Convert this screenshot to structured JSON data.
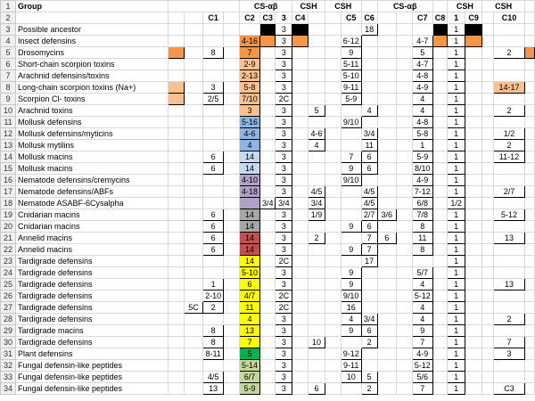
{
  "colors": {
    "orange": "#f79646",
    "lightorange": "#fac090",
    "blue": "#8db4e2",
    "lightblue": "#c5d9f1",
    "purple": "#b1a0c7",
    "gray": "#a6a6a6",
    "red": "#c0504d",
    "yellow": "#ffff00",
    "green": "#00b050",
    "olive": "#c4d79b",
    "black": "#000000"
  },
  "header1": {
    "cs_ab_1": "CS-αβ",
    "csh_1": "CSH",
    "csh_2": "CSH",
    "cs_ab_2": "CS-αβ",
    "csh_3": "CSH",
    "csh_4": "CSH"
  },
  "header2": {
    "c1": "C1",
    "c2": "C2",
    "c3": "C3",
    "n3": "3",
    "c4": "C4",
    "c5": "C5",
    "c6": "C6",
    "c7": "C7",
    "c8": "C8",
    "n1": "1",
    "c9": "C9",
    "c10": "C10"
  },
  "group_label": "Group",
  "rows": [
    {
      "n": "3",
      "group": "Possible ancestor"
    },
    {
      "n": "4",
      "group": "Insect defensins"
    },
    {
      "n": "5",
      "group": "Drosomycins"
    },
    {
      "n": "6",
      "group": "Short-chain scorpion toxins"
    },
    {
      "n": "7",
      "group": "Arachnid defensins/toxins"
    },
    {
      "n": "8",
      "group": "Long-chain scorpion toxins (Na+)"
    },
    {
      "n": "9",
      "group": "Scorpion Cl- toxins"
    },
    {
      "n": "10",
      "group": "Arachnid toxins"
    },
    {
      "n": "11",
      "group": "Mollusk defensins"
    },
    {
      "n": "12",
      "group": "Mollusk defensins/myticins"
    },
    {
      "n": "13",
      "group": "Mollusk mytilins"
    },
    {
      "n": "14",
      "group": "Mollusk macins"
    },
    {
      "n": "15",
      "group": "Mollusk macins"
    },
    {
      "n": "16",
      "group": "Nematode defensins/cremycins"
    },
    {
      "n": "17",
      "group": "Nematode defensins/ABFs"
    },
    {
      "n": "18",
      "group": "Nematode ASABF-6Cysalpha"
    },
    {
      "n": "19",
      "group": "Cnidarian macins"
    },
    {
      "n": "20",
      "group": "Cnidarian macins"
    },
    {
      "n": "21",
      "group": "Annelid macins"
    },
    {
      "n": "22",
      "group": "Annelid macins"
    },
    {
      "n": "23",
      "group": "Tardigrade defensins"
    },
    {
      "n": "24",
      "group": "Tardigrade defensins"
    },
    {
      "n": "25",
      "group": "Tardigrade defensins"
    },
    {
      "n": "26",
      "group": "Tardigrade defensins"
    },
    {
      "n": "27",
      "group": "Tardigrade defensins"
    },
    {
      "n": "28",
      "group": "Tardigrade defensins"
    },
    {
      "n": "29",
      "group": "Tardigrade macins"
    },
    {
      "n": "30",
      "group": "Tardigrade defensins"
    },
    {
      "n": "31",
      "group": "Plant defensins"
    },
    {
      "n": "32",
      "group": "Fungal defensin-like peptides"
    },
    {
      "n": "33",
      "group": "Fungal defensin-like peptides"
    },
    {
      "n": "34",
      "group": "Fungal defensin-like peptides"
    }
  ],
  "cells": {
    "3": {
      "c3": [
        "",
        "black"
      ],
      "n3": [
        "3",
        ""
      ],
      "c4": [
        "",
        "black"
      ],
      "c6": [
        "18",
        ""
      ],
      "c8": [
        "",
        "black"
      ],
      "n1": [
        "1",
        ""
      ],
      "c9": [
        "",
        "black"
      ]
    },
    "4": {
      "c2": [
        "4-16",
        "orange"
      ],
      "c3": [
        "",
        "orange"
      ],
      "n3": [
        "3",
        ""
      ],
      "c4": [
        "",
        "orange"
      ],
      "c5": [
        "6-12",
        ""
      ],
      "c7": [
        "4-7",
        ""
      ],
      "c8": [
        "",
        "orange"
      ],
      "n1": [
        "1",
        ""
      ],
      "c9": [
        "",
        "orange"
      ]
    },
    "5": {
      "b": [
        "",
        "orange"
      ],
      "c1": [
        "8",
        ""
      ],
      "c2": [
        "7",
        "orange"
      ],
      "n3": [
        "3",
        ""
      ],
      "c5": [
        "9",
        ""
      ],
      "c7": [
        "5",
        ""
      ],
      "n1": [
        "1",
        ""
      ],
      "c10": [
        "2",
        ""
      ],
      "c10b": [
        "",
        "orange"
      ]
    },
    "6": {
      "c2": [
        "2-9",
        "lightorange"
      ],
      "n3": [
        "3",
        ""
      ],
      "c5": [
        "5-11",
        ""
      ],
      "c7": [
        "4-7",
        ""
      ],
      "n1": [
        "1",
        ""
      ]
    },
    "7": {
      "c2": [
        "2-13",
        "lightorange"
      ],
      "n3": [
        "3",
        ""
      ],
      "c5": [
        "5-10",
        ""
      ],
      "c7": [
        "4-8",
        ""
      ],
      "n1": [
        "1",
        ""
      ]
    },
    "8": {
      "b": [
        "",
        "lightorange"
      ],
      "c1": [
        "3",
        ""
      ],
      "c2": [
        "5-8",
        "lightorange"
      ],
      "n3": [
        "3",
        ""
      ],
      "c5": [
        "9-11",
        ""
      ],
      "c7": [
        "4-9",
        ""
      ],
      "n1": [
        "1",
        ""
      ],
      "c10": [
        "14-17",
        "lightorange"
      ]
    },
    "9": {
      "b": [
        "",
        "lightorange"
      ],
      "c1": [
        "2/5",
        ""
      ],
      "c2": [
        "7/10",
        "lightorange"
      ],
      "n3": [
        "2C",
        ""
      ],
      "c5": [
        "5-9",
        ""
      ],
      "c7": [
        "4",
        ""
      ],
      "n1": [
        "1",
        ""
      ]
    },
    "10": {
      "c2": [
        "3",
        "lightorange"
      ],
      "n3": [
        "3",
        ""
      ],
      "c4b": [
        "5",
        ""
      ],
      "c6": [
        "4",
        ""
      ],
      "c7": [
        "4",
        ""
      ],
      "n1": [
        "1",
        ""
      ],
      "c10": [
        "2",
        ""
      ]
    },
    "11": {
      "c2": [
        "5-16",
        "blue"
      ],
      "n3": [
        "3",
        ""
      ],
      "c5": [
        "9/10",
        ""
      ],
      "c7": [
        "4-8",
        ""
      ],
      "n1": [
        "1",
        ""
      ]
    },
    "12": {
      "c2": [
        "4-6",
        "blue"
      ],
      "n3": [
        "3",
        ""
      ],
      "c4b": [
        "4-6",
        ""
      ],
      "c6": [
        "3/4",
        ""
      ],
      "c7": [
        "5-8",
        ""
      ],
      "n1": [
        "1",
        ""
      ],
      "c10": [
        "1/2",
        ""
      ]
    },
    "13": {
      "c2": [
        "4",
        "blue"
      ],
      "n3": [
        "3",
        ""
      ],
      "c4b": [
        "4",
        ""
      ],
      "c6": [
        "11",
        ""
      ],
      "c7": [
        "1",
        ""
      ],
      "n1": [
        "1",
        ""
      ],
      "c10": [
        "2",
        ""
      ]
    },
    "14": {
      "c1": [
        "6",
        ""
      ],
      "c2": [
        "14",
        "lightblue"
      ],
      "n3": [
        "3",
        ""
      ],
      "c5": [
        "7",
        ""
      ],
      "c6": [
        "6",
        ""
      ],
      "c7": [
        "5-9",
        ""
      ],
      "n1": [
        "1",
        ""
      ],
      "c10": [
        "11-12",
        ""
      ]
    },
    "15": {
      "c1": [
        "6",
        ""
      ],
      "c2": [
        "14",
        "lightblue"
      ],
      "n3": [
        "3",
        ""
      ],
      "c5": [
        "9",
        ""
      ],
      "c6": [
        "6",
        ""
      ],
      "c7": [
        "8/10",
        ""
      ],
      "n1": [
        "1",
        ""
      ]
    },
    "16": {
      "c2": [
        "4-10",
        "purple"
      ],
      "n3": [
        "3",
        ""
      ],
      "c5": [
        "9/10",
        ""
      ],
      "c7": [
        "4-9",
        ""
      ],
      "n1": [
        "1",
        ""
      ]
    },
    "17": {
      "c2": [
        "4-18",
        "purple"
      ],
      "n3": [
        "3",
        ""
      ],
      "c4b": [
        "4/5",
        ""
      ],
      "c6": [
        "4/5",
        ""
      ],
      "c7": [
        "7-12",
        ""
      ],
      "n1": [
        "1",
        ""
      ],
      "c10": [
        "2/7",
        ""
      ]
    },
    "18": {
      "c2": [
        "",
        "purple"
      ],
      "c3": [
        "3/4",
        ""
      ],
      "n3": [
        "3/4",
        ""
      ],
      "c4b": [
        "3/4",
        ""
      ],
      "c6": [
        "4/5",
        ""
      ],
      "c7": [
        "6/8",
        ""
      ],
      "n1": [
        "1/2",
        ""
      ]
    },
    "19": {
      "c1": [
        "6",
        ""
      ],
      "c2": [
        "14",
        "gray"
      ],
      "n3": [
        "3",
        ""
      ],
      "c4b": [
        "1/9",
        ""
      ],
      "c6": [
        "2/7",
        ""
      ],
      "c6b": [
        "3/6",
        ""
      ],
      "c7": [
        "7/8",
        ""
      ],
      "n1": [
        "1",
        ""
      ],
      "c10": [
        "5-12",
        ""
      ]
    },
    "20": {
      "c1": [
        "6",
        ""
      ],
      "c2": [
        "14",
        "gray"
      ],
      "n3": [
        "3",
        ""
      ],
      "c5": [
        "9",
        ""
      ],
      "c6": [
        "6",
        ""
      ],
      "c7": [
        "8",
        ""
      ],
      "n1": [
        "1",
        ""
      ]
    },
    "21": {
      "c1": [
        "6",
        ""
      ],
      "c2": [
        "14",
        "red"
      ],
      "n3": [
        "3",
        ""
      ],
      "c4b": [
        "2",
        ""
      ],
      "c6": [
        "7",
        ""
      ],
      "c6b": [
        "6",
        ""
      ],
      "c7": [
        "11",
        ""
      ],
      "n1": [
        "1",
        ""
      ],
      "c10": [
        "13",
        ""
      ]
    },
    "22": {
      "c1": [
        "6",
        ""
      ],
      "c2": [
        "14",
        "red"
      ],
      "n3": [
        "3",
        ""
      ],
      "c5": [
        "9",
        ""
      ],
      "c6": [
        "7",
        ""
      ],
      "c7": [
        "8",
        ""
      ],
      "n1": [
        "1",
        ""
      ]
    },
    "23": {
      "c2": [
        "14",
        "yellow"
      ],
      "n3": [
        "2C",
        ""
      ],
      "c6": [
        "17",
        ""
      ],
      "n1": [
        "1",
        ""
      ]
    },
    "24": {
      "c2": [
        "5-10",
        "yellow"
      ],
      "n3": [
        "3",
        ""
      ],
      "c5": [
        "9",
        ""
      ],
      "c7": [
        "5/7",
        ""
      ],
      "n1": [
        "1",
        ""
      ]
    },
    "25": {
      "c1": [
        "1",
        ""
      ],
      "c2": [
        "6",
        "yellow"
      ],
      "n3": [
        "3",
        ""
      ],
      "c5": [
        "9",
        ""
      ],
      "c7": [
        "4",
        ""
      ],
      "n1": [
        "1",
        ""
      ],
      "c10": [
        "13",
        ""
      ]
    },
    "26": {
      "c1": [
        "2-10",
        ""
      ],
      "c2": [
        "4/7",
        "yellow"
      ],
      "n3": [
        "2C",
        ""
      ],
      "c5": [
        "9/10",
        ""
      ],
      "c7": [
        "5-12",
        ""
      ],
      "n1": [
        "1",
        ""
      ]
    },
    "27": {
      "c0": [
        "5C",
        ""
      ],
      "c1": [
        "2",
        ""
      ],
      "c2": [
        "11",
        "yellow"
      ],
      "n3": [
        "2C",
        ""
      ],
      "c5": [
        "16",
        ""
      ],
      "c7": [
        "4",
        ""
      ],
      "n1": [
        "1",
        ""
      ]
    },
    "28": {
      "c2": [
        "4",
        "yellow"
      ],
      "n3": [
        "3",
        ""
      ],
      "c5": [
        "4",
        ""
      ],
      "c6": [
        "3/4",
        ""
      ],
      "c7": [
        "4",
        ""
      ],
      "n1": [
        "1",
        ""
      ],
      "c10": [
        "2",
        ""
      ]
    },
    "29": {
      "c1": [
        "8",
        ""
      ],
      "c2": [
        "13",
        "yellow"
      ],
      "n3": [
        "3",
        ""
      ],
      "c5": [
        "9",
        ""
      ],
      "c6": [
        "6",
        ""
      ],
      "c7": [
        "9",
        ""
      ],
      "n1": [
        "1",
        ""
      ]
    },
    "30": {
      "c1": [
        "8",
        ""
      ],
      "c2": [
        "7",
        "yellow"
      ],
      "n3": [
        "3",
        ""
      ],
      "c4b": [
        "10",
        ""
      ],
      "c6": [
        "2",
        ""
      ],
      "c7": [
        "7",
        ""
      ],
      "n1": [
        "1",
        ""
      ],
      "c10": [
        "7",
        ""
      ]
    },
    "31": {
      "c1": [
        "8-11",
        ""
      ],
      "c2": [
        "5",
        "green"
      ],
      "n3": [
        "3",
        ""
      ],
      "c5": [
        "9-12",
        ""
      ],
      "c7": [
        "4-9",
        ""
      ],
      "n1": [
        "1",
        ""
      ],
      "c10": [
        "3",
        ""
      ]
    },
    "32": {
      "c2": [
        "5-14",
        "olive"
      ],
      "n3": [
        "3",
        ""
      ],
      "c5": [
        "9-11",
        ""
      ],
      "c7": [
        "5-12",
        ""
      ],
      "n1": [
        "1",
        ""
      ]
    },
    "33": {
      "c1": [
        "4/5",
        ""
      ],
      "c2": [
        "6/7",
        "olive"
      ],
      "n3": [
        "3",
        ""
      ],
      "c5": [
        "10",
        ""
      ],
      "c6": [
        "5",
        ""
      ],
      "c7": [
        "5/6",
        ""
      ],
      "n1": [
        "1",
        ""
      ]
    },
    "34": {
      "c1": [
        "13",
        ""
      ],
      "c2": [
        "5-9",
        "olive"
      ],
      "n3": [
        "3",
        ""
      ],
      "c4b": [
        "6",
        ""
      ],
      "c6": [
        "2",
        ""
      ],
      "c7": [
        "7",
        ""
      ],
      "n1": [
        "1",
        ""
      ],
      "c10": [
        "C3",
        ""
      ]
    }
  }
}
